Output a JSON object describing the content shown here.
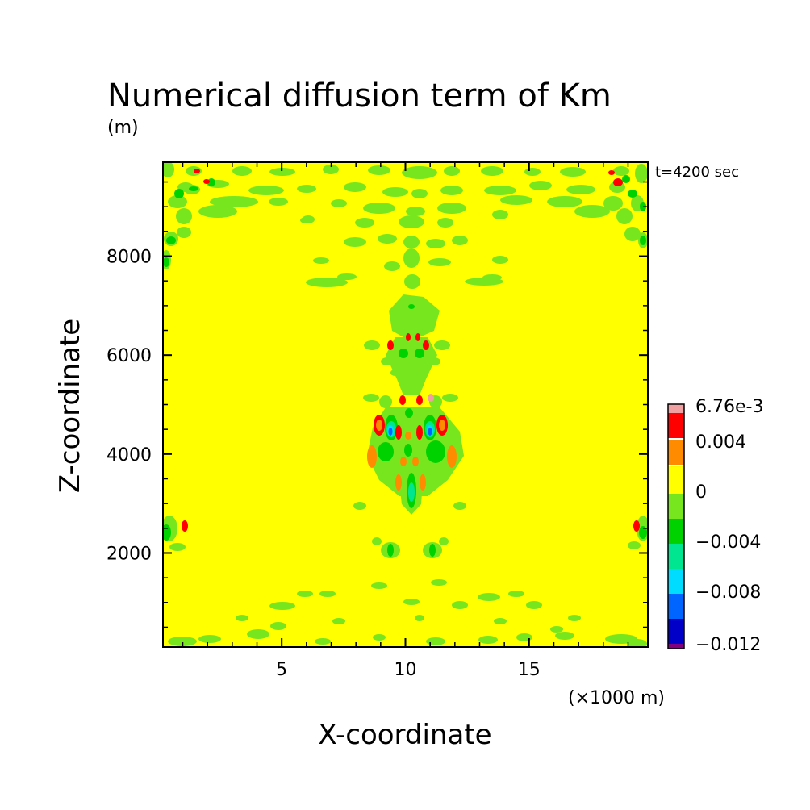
{
  "chart_data": {
    "type": "heatmap",
    "title": "Numerical diffusion term of Km",
    "unit": "(m)",
    "time_label": "t=4200 sec",
    "xlabel": "X-coordinate",
    "ylabel": "Z-coordinate",
    "x_unit": "(×1000 m)",
    "xlim": [
      0.2,
      19.8
    ],
    "ylim": [
      100,
      9900
    ],
    "x_ticks": [
      5,
      10,
      15
    ],
    "x_tick_labels": [
      "5",
      "10",
      "15"
    ],
    "y_ticks": [
      2000,
      4000,
      6000,
      8000
    ],
    "y_tick_labels": [
      "2000",
      "4000",
      "6000",
      "8000"
    ],
    "background_level": 0,
    "colorbar": {
      "levels": [
        {
          "color": "#800080"
        },
        {
          "color": "#0000c8",
          "label": "−0.012"
        },
        {
          "color": "#0064ff"
        },
        {
          "color": "#00dcff",
          "label": "−0.008"
        },
        {
          "color": "#00e690"
        },
        {
          "color": "#00d200",
          "label": "−0.004"
        },
        {
          "color": "#78e61e"
        },
        {
          "color": "#ffff00",
          "label": "0"
        },
        {
          "color": "#ff8c00"
        },
        {
          "color": "#ff0000",
          "label": "0.004"
        },
        {
          "color": "#f0a0a0",
          "label": "6.76e-3"
        }
      ]
    },
    "features": [
      {
        "x": 9.2,
        "z": 4450,
        "value": -0.011
      },
      {
        "x": 11.0,
        "z": 4450,
        "value": -0.011
      },
      {
        "x": 8.8,
        "z": 4500,
        "value": 0.005
      },
      {
        "x": 11.6,
        "z": 4500,
        "value": 0.005
      },
      {
        "x": 9.7,
        "z": 4400,
        "value": 0.005
      },
      {
        "x": 10.5,
        "z": 4400,
        "value": 0.005
      },
      {
        "x": 8.6,
        "z": 3900,
        "value": 0.003
      },
      {
        "x": 11.8,
        "z": 3900,
        "value": 0.003
      },
      {
        "x": 10.1,
        "z": 3300,
        "value": -0.004
      },
      {
        "x": 10.1,
        "z": 5500,
        "value": -0.003
      },
      {
        "x": 9.9,
        "z": 6350,
        "value": 0.004
      },
      {
        "x": 10.6,
        "z": 6350,
        "value": 0.004
      },
      {
        "x": 0.4,
        "z": 2450,
        "value": -0.004
      },
      {
        "x": 1.0,
        "z": 2550,
        "value": 0.004
      },
      {
        "x": 19.6,
        "z": 2450,
        "value": -0.004
      },
      {
        "x": 19.0,
        "z": 2550,
        "value": 0.004
      },
      {
        "x": 2.0,
        "z": 9550,
        "value": 0.004
      },
      {
        "x": 18.2,
        "z": 9550,
        "value": 0.004
      },
      {
        "x": 9.5,
        "z": 7750,
        "value": -0.002
      },
      {
        "x": 10.1,
        "z": 9200,
        "value": -0.002
      }
    ]
  }
}
